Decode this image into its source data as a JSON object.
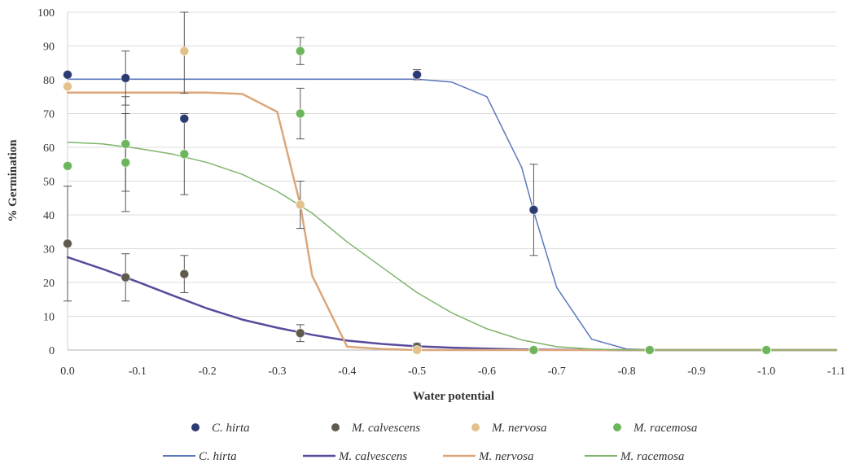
{
  "chart_data": {
    "type": "scatter",
    "xlabel": "Water potential",
    "ylabel": "% Germination",
    "xlim": [
      0,
      -1.1
    ],
    "ylim": [
      0,
      100
    ],
    "x_ticks": [
      "0.0",
      "-0.1",
      "-0.2",
      "-0.3",
      "-0.4",
      "-0.5",
      "-0.6",
      "-0.7",
      "-0.8",
      "-0.9",
      "-1.0",
      "-1.1"
    ],
    "y_ticks": [
      "0",
      "10",
      "20",
      "30",
      "40",
      "50",
      "60",
      "70",
      "80",
      "90",
      "100"
    ],
    "grid": "horizontal",
    "legend_position": "bottom",
    "observed": [
      {
        "name": "C. hirta",
        "color": "#2c3a74",
        "points": [
          {
            "x": 0,
            "y": 81.5,
            "err": null
          },
          {
            "x": -0.083,
            "y": 80.5,
            "err": 8
          },
          {
            "x": -0.167,
            "y": 68.5,
            "err": null
          },
          {
            "x": -0.5,
            "y": 81.5,
            "err": 1.5
          },
          {
            "x": -0.667,
            "y": 41.5,
            "err": 13.5
          },
          {
            "x": -0.833,
            "y": 0,
            "err": null
          },
          {
            "x": -1.0,
            "y": 0,
            "err": null
          }
        ]
      },
      {
        "name": "M. calvescens",
        "color": "#5e5a4c",
        "points": [
          {
            "x": 0,
            "y": 31.5,
            "err": 17
          },
          {
            "x": -0.083,
            "y": 21.5,
            "err": 7
          },
          {
            "x": -0.167,
            "y": 22.5,
            "err": 5.5
          },
          {
            "x": -0.333,
            "y": 5,
            "err": 2.5
          },
          {
            "x": -0.5,
            "y": 1,
            "err": 1
          },
          {
            "x": -0.667,
            "y": 0,
            "err": null
          },
          {
            "x": -0.833,
            "y": 0,
            "err": null
          },
          {
            "x": -1.0,
            "y": 0,
            "err": null
          }
        ]
      },
      {
        "name": "M. nervosa",
        "color": "#e3c18a",
        "points": [
          {
            "x": 0,
            "y": 78,
            "err": null
          },
          {
            "x": -0.167,
            "y": 88.5,
            "err": 12.5
          },
          {
            "x": -0.333,
            "y": 43,
            "err": 7
          },
          {
            "x": -0.5,
            "y": 0,
            "err": null
          },
          {
            "x": -0.667,
            "y": 0,
            "err": null
          },
          {
            "x": -0.833,
            "y": 0,
            "err": null
          },
          {
            "x": -1.0,
            "y": 0,
            "err": null
          }
        ]
      },
      {
        "name": "M. racemosa",
        "color": "#6bb65a",
        "points": [
          {
            "x": 0,
            "y": 54.5,
            "err": null
          },
          {
            "x": -0.083,
            "y": 61,
            "err": 14
          },
          {
            "x": -0.083,
            "y": 55.5,
            "err": 14.5
          },
          {
            "x": -0.167,
            "y": 58,
            "err": 12
          },
          {
            "x": -0.333,
            "y": 88.5,
            "err": 4
          },
          {
            "x": -0.333,
            "y": 70,
            "err": 7.5
          },
          {
            "x": -0.667,
            "y": 0,
            "err": null
          },
          {
            "x": -0.833,
            "y": 0,
            "err": null
          },
          {
            "x": -1.0,
            "y": 0,
            "err": null
          }
        ]
      }
    ],
    "fitted": [
      {
        "name": "C. hirta",
        "color": "#5a78bc",
        "width": 1.5,
        "x": [
          0,
          -0.1,
          -0.2,
          -0.3,
          -0.4,
          -0.5,
          -0.55,
          -0.6,
          -0.65,
          -0.667,
          -0.7,
          -0.75,
          -0.8,
          -0.85,
          -0.9,
          -1.0,
          -1.1
        ],
        "y": [
          80.2,
          80.2,
          80.2,
          80.2,
          80.2,
          80.2,
          79.3,
          75,
          54,
          41,
          18.5,
          3.2,
          0.3,
          0,
          0,
          0,
          0
        ]
      },
      {
        "name": "M. calvescens",
        "color": "#5a4a9c",
        "width": 2.5,
        "x": [
          0,
          -0.05,
          -0.1,
          -0.15,
          -0.2,
          -0.25,
          -0.3,
          -0.35,
          -0.4,
          -0.45,
          -0.5,
          -0.55,
          -0.6,
          -0.65,
          -0.7,
          -0.8,
          -0.9,
          -1.0,
          -1.1
        ],
        "y": [
          27.5,
          24,
          20.2,
          16.2,
          12.3,
          9,
          6.6,
          4.5,
          2.8,
          1.8,
          1.1,
          0.7,
          0.4,
          0.2,
          0.1,
          0,
          0,
          0,
          0
        ]
      },
      {
        "name": "M. nervosa",
        "color": "#dca67a",
        "width": 2.5,
        "x": [
          0,
          -0.1,
          -0.2,
          -0.25,
          -0.3,
          -0.333,
          -0.35,
          -0.4,
          -0.45,
          -0.5,
          -0.6,
          -0.7,
          -0.8,
          -0.9,
          -1.0,
          -1.1
        ],
        "y": [
          76.2,
          76.2,
          76.2,
          75.8,
          70.5,
          43,
          22,
          1,
          0.3,
          0,
          0,
          0,
          0,
          0,
          0,
          0
        ]
      },
      {
        "name": "M. racemosa",
        "color": "#7fb46a",
        "width": 1.5,
        "x": [
          0,
          -0.05,
          -0.1,
          -0.15,
          -0.2,
          -0.25,
          -0.3,
          -0.35,
          -0.4,
          -0.45,
          -0.5,
          -0.55,
          -0.6,
          -0.65,
          -0.7,
          -0.75,
          -0.8,
          -0.9,
          -1.0,
          -1.1
        ],
        "y": [
          61.5,
          61,
          59.7,
          58,
          55.5,
          52,
          47,
          40.5,
          32,
          24.5,
          17,
          11,
          6.3,
          3,
          1,
          0.3,
          0,
          0,
          0,
          0
        ]
      }
    ]
  }
}
